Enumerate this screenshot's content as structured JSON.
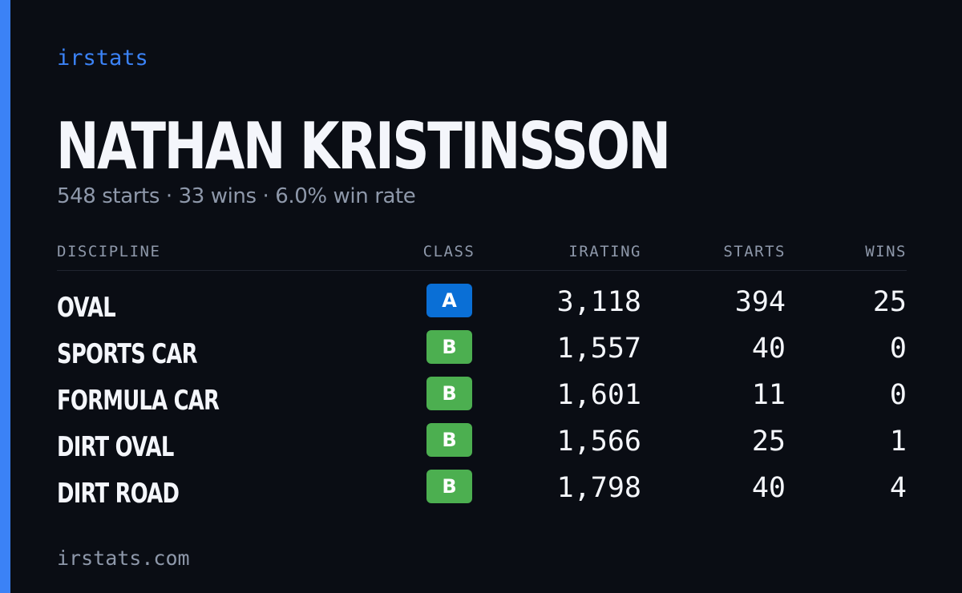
{
  "brand": "irstats",
  "driver": {
    "name": "NATHAN KRISTINSSON",
    "summary": "548 starts · 33 wins · 6.0% win rate"
  },
  "table": {
    "headers": {
      "discipline": "DISCIPLINE",
      "class": "CLASS",
      "irating": "IRATING",
      "starts": "STARTS",
      "wins": "WINS"
    },
    "rows": [
      {
        "discipline": "OVAL",
        "class": "A",
        "class_color": "#0a6fd6",
        "irating": "3,118",
        "starts": "394",
        "wins": "25"
      },
      {
        "discipline": "SPORTS CAR",
        "class": "B",
        "class_color": "#4caf50",
        "irating": "1,557",
        "starts": "40",
        "wins": "0"
      },
      {
        "discipline": "FORMULA CAR",
        "class": "B",
        "class_color": "#4caf50",
        "irating": "1,601",
        "starts": "11",
        "wins": "0"
      },
      {
        "discipline": "DIRT OVAL",
        "class": "B",
        "class_color": "#4caf50",
        "irating": "1,566",
        "starts": "25",
        "wins": "1"
      },
      {
        "discipline": "DIRT ROAD",
        "class": "B",
        "class_color": "#4caf50",
        "irating": "1,798",
        "starts": "40",
        "wins": "4"
      }
    ]
  },
  "footer": "irstats.com",
  "colors": {
    "accent": "#3b82f6",
    "background": "#0a0d14",
    "muted_text": "#8e98aa"
  }
}
